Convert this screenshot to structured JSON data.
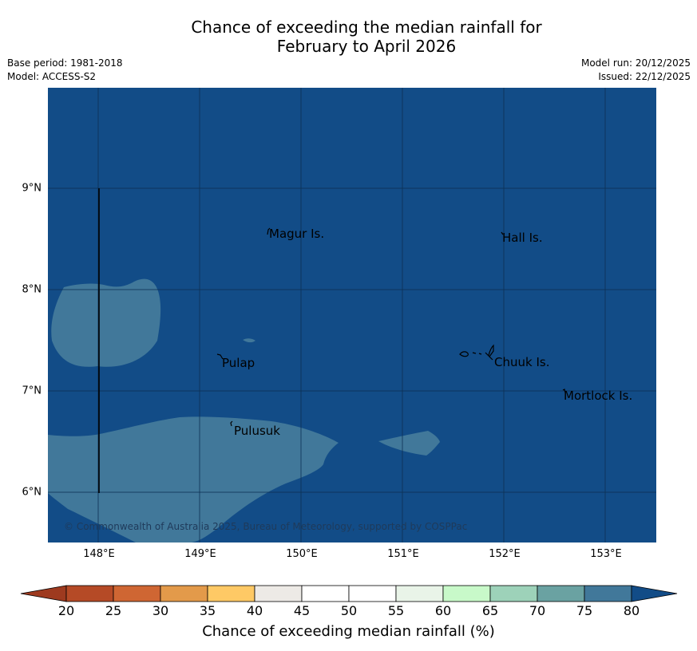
{
  "title": {
    "line1": "Chance of exceeding the median rainfall for",
    "line2": "February to April 2026"
  },
  "meta": {
    "base_period": "Base period: 1981-2018",
    "model": "Model: ACCESS-S2",
    "model_run": "Model run: 20/12/2025",
    "issued": "Issued: 22/12/2025"
  },
  "map": {
    "lat_labels": [
      "9°N",
      "8°N",
      "7°N",
      "6°N"
    ],
    "lon_labels": [
      "148°E",
      "149°E",
      "150°E",
      "151°E",
      "152°E",
      "153°E"
    ],
    "places": [
      "Magur Is.",
      "Hall Is.",
      "Pulap",
      "Chuuk Is.",
      "Mortlock Is.",
      "Pulusuk"
    ],
    "copyright": "© Commonwealth of Australia 2025, Bureau of Meteorology, supported by COSPPac",
    "colors": {
      "dominant_category": "#124c87",
      "secondary_category": "#41789a"
    }
  },
  "colorbar": {
    "ticks": [
      "20",
      "25",
      "30",
      "35",
      "40",
      "45",
      "50",
      "55",
      "60",
      "65",
      "70",
      "75",
      "80"
    ],
    "colors": [
      "#9e3a1f",
      "#b54a26",
      "#cf6633",
      "#e39a4a",
      "#fec965",
      "#edeae6",
      "#ffffff",
      "#ffffff",
      "#e9f4e8",
      "#c8f9c9",
      "#9dd2b9",
      "#6aa2a2",
      "#41789a",
      "#124c87"
    ],
    "label": "Chance of exceeding median rainfall (%)"
  }
}
